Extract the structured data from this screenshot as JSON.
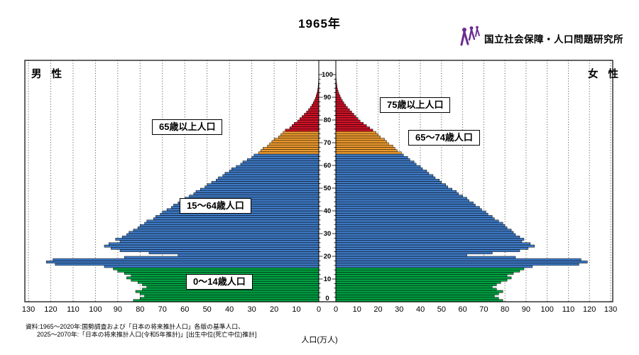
{
  "title": "1965年",
  "logo": {
    "text": "国立社会保障・人口問題研究所"
  },
  "labels": {
    "male": "男 性",
    "female": "女 性",
    "xlabel": "人口(万人)"
  },
  "annotations": {
    "age65plus": "65歳以上人口",
    "age75plus": "75歳以上人口",
    "age65to74": "65〜74歳人口",
    "age15to64": "15〜64歳人口",
    "age0to14": "0〜14歳人口"
  },
  "source": {
    "line1": "資料:1965〜2020年:国勢調査および「日本の将来推計人口」各版の基準人口、",
    "line2": "2025〜2070年:「日本の将来推計人口(令和5年推計)」[出生中位(死亡中位)推計]"
  },
  "chart_data": {
    "type": "bar",
    "subtype": "population-pyramid",
    "title": "1965年",
    "xlabel": "人口(万人)",
    "unit": "万人",
    "xlim": [
      0,
      130
    ],
    "x_ticks": [
      0,
      10,
      20,
      30,
      40,
      50,
      60,
      70,
      80,
      90,
      100,
      110,
      120,
      130
    ],
    "age_ticks": [
      0,
      10,
      20,
      30,
      40,
      50,
      60,
      70,
      80,
      90,
      100
    ],
    "age_range": [
      0,
      100
    ],
    "grid": "dotted-vertical-every-10",
    "groups": [
      {
        "name": "0〜14歳人口",
        "age_from": 0,
        "age_to": 14,
        "color": "#00A142"
      },
      {
        "name": "15〜64歳人口",
        "age_from": 15,
        "age_to": 64,
        "color": "#3E79C4"
      },
      {
        "name": "65〜74歳人口",
        "age_from": 65,
        "age_to": 74,
        "color": "#ED9A2E"
      },
      {
        "name": "75歳以上人口",
        "age_from": 75,
        "age_to": 100,
        "color": "#CE1126"
      }
    ],
    "series": [
      {
        "name": "男性",
        "side": "left",
        "values": [
          83,
          80,
          78,
          80,
          82,
          79,
          77,
          79,
          81,
          84,
          86,
          84,
          87,
          90,
          92,
          96,
          118,
          122,
          119,
          87,
          63,
          76,
          89,
          93,
          96,
          94,
          89,
          91,
          88,
          86,
          85,
          83,
          81,
          80,
          78,
          77,
          74,
          73,
          71,
          70,
          68,
          66,
          65,
          63,
          61,
          60,
          58,
          56,
          55,
          53,
          51,
          50,
          48,
          46,
          45,
          43,
          42,
          40,
          39,
          37,
          35,
          34,
          32,
          30,
          29,
          27,
          26,
          25,
          23,
          22,
          21,
          20,
          18,
          17,
          16,
          15,
          13,
          12,
          11,
          9.5,
          8.5,
          7.5,
          6.5,
          5.5,
          4.6,
          3.8,
          3.1,
          2.5,
          2,
          1.5,
          1.2,
          0.9,
          0.6,
          0.45,
          0.3,
          0.22,
          0.15,
          0.1,
          0.07,
          0.05,
          0.03
        ]
      },
      {
        "name": "女性",
        "side": "right",
        "values": [
          79,
          77,
          75,
          77,
          79,
          76,
          74,
          76,
          78,
          81,
          83,
          81,
          84,
          87,
          89,
          93,
          115,
          119,
          116,
          85,
          62,
          74,
          87,
          91,
          94,
          92,
          88,
          89,
          87,
          85,
          84,
          83,
          81,
          80,
          79,
          77,
          75,
          74,
          72,
          71,
          69,
          68,
          66,
          65,
          63,
          62,
          60,
          58,
          57,
          55,
          53,
          52,
          50,
          49,
          47,
          46,
          44,
          43,
          41,
          40,
          38,
          37,
          35,
          34,
          32,
          31,
          29,
          28,
          27,
          25,
          24,
          23,
          21,
          20,
          19,
          17.5,
          16,
          14.5,
          13,
          11.5,
          10.5,
          9.5,
          8.5,
          7.5,
          6.5,
          5.5,
          4.6,
          3.8,
          3.1,
          2.5,
          2,
          1.5,
          1.1,
          0.8,
          0.6,
          0.45,
          0.3,
          0.2,
          0.13,
          0.09,
          0.06
        ]
      }
    ]
  }
}
